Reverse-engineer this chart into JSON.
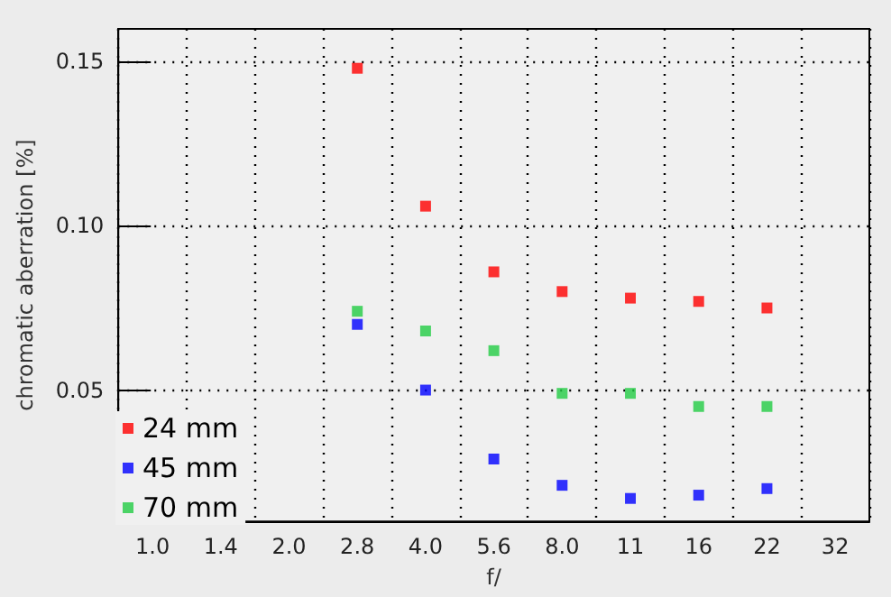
{
  "chart_data": {
    "type": "scatter",
    "xlabel": "f/",
    "ylabel": "chromatic aberration [%]",
    "categories": [
      "1.0",
      "1.4",
      "2.0",
      "2.8",
      "4.0",
      "5.6",
      "8.0",
      "11",
      "16",
      "22",
      "32"
    ],
    "series": [
      {
        "name": "24 mm",
        "color": "#ff0000",
        "values": [
          null,
          null,
          null,
          0.148,
          0.106,
          0.086,
          0.08,
          0.078,
          0.077,
          0.075,
          null
        ]
      },
      {
        "name": "45 mm",
        "color": "#0000ff",
        "values": [
          null,
          null,
          null,
          0.07,
          0.05,
          0.029,
          0.021,
          0.017,
          0.018,
          0.02,
          null
        ]
      },
      {
        "name": "70 mm",
        "color": "#22cc44",
        "values": [
          null,
          null,
          null,
          0.074,
          0.068,
          0.062,
          0.049,
          0.049,
          0.045,
          0.045,
          null
        ]
      }
    ],
    "ylim": [
      0.01,
      0.16
    ],
    "yticks": [
      0.05,
      {
        "value": 0.1,
        "label": "0.10"
      },
      0.15
    ],
    "grid": true,
    "legend": "bottom left",
    "marker": "square"
  }
}
